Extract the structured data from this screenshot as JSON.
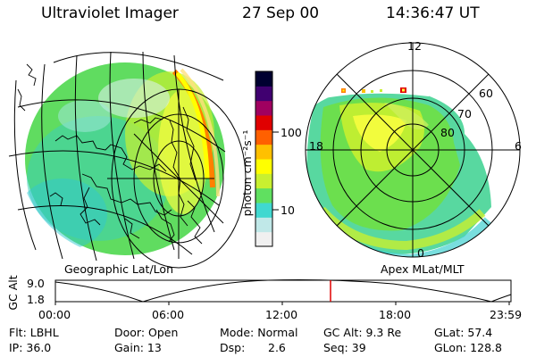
{
  "header": {
    "instrument": "Ultraviolet Imager",
    "date": "27 Sep 00",
    "time": "14:36:47 UT"
  },
  "left_panel": {
    "caption": "Geographic Lat/Lon"
  },
  "right_panel": {
    "caption": "Apex MLat/MLT",
    "mlt_labels": [
      "12",
      "18",
      "6",
      "0"
    ],
    "mlat_labels": [
      "60",
      "70",
      "80"
    ]
  },
  "colorbar": {
    "label": "photon cm⁻²s⁻¹",
    "ticks": [
      "100",
      "10"
    ],
    "scale": "log",
    "colors": [
      "#f0f0f0",
      "#c0e8e8",
      "#40d8d0",
      "#60e060",
      "#c8f030",
      "#ffff00",
      "#ffc000",
      "#ff6000",
      "#e00000",
      "#a00060",
      "#400070",
      "#000030"
    ]
  },
  "altitude_plot": {
    "ylabel": "GC Alt",
    "yticks": [
      "9.0",
      "1.8"
    ],
    "xticks": [
      "00:00",
      "06:00",
      "12:00",
      "18:00",
      "23:59"
    ],
    "marker_color": "#e00000"
  },
  "info": {
    "row1": {
      "flt": "Flt: LBHL",
      "door": "Door: Open",
      "mode": "Mode: Normal",
      "gcalt": "GC Alt: 9.3 Re",
      "glat": "GLat: 57.4"
    },
    "row2": {
      "ip": "IP: 36.0",
      "gain": "Gain: 13",
      "dsp_label": "Dsp:",
      "dsp_value": "2.6",
      "seq": "Seq: 39",
      "glon": "GLon: 128.8"
    }
  }
}
